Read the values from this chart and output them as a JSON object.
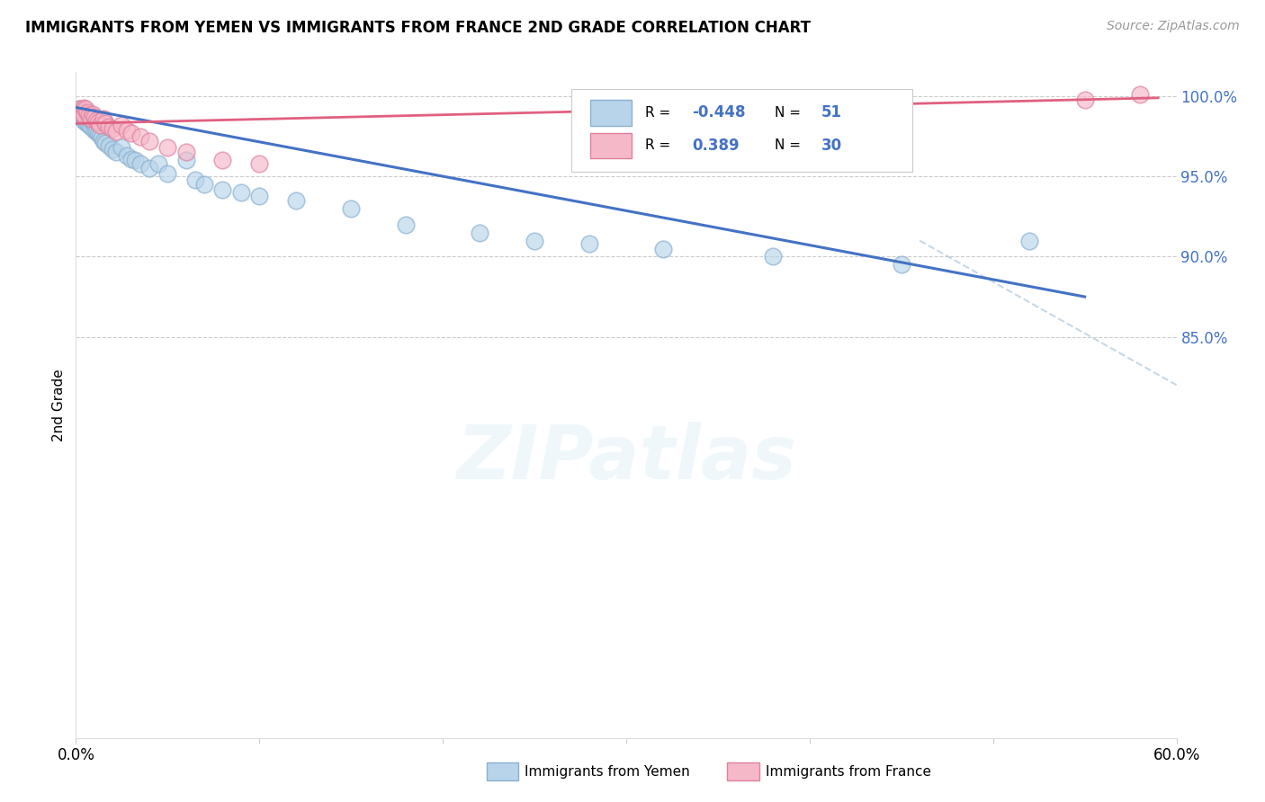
{
  "title": "IMMIGRANTS FROM YEMEN VS IMMIGRANTS FROM FRANCE 2ND GRADE CORRELATION CHART",
  "source": "Source: ZipAtlas.com",
  "ylabel": "2nd Grade",
  "ytick_labels": [
    "100.0%",
    "95.0%",
    "90.0%",
    "85.0%"
  ],
  "ytick_vals": [
    1.0,
    0.95,
    0.9,
    0.85
  ],
  "xtick_labels": [
    "0.0%",
    "",
    "",
    "",
    "",
    "",
    "60.0%"
  ],
  "xtick_vals": [
    0.0,
    0.1,
    0.2,
    0.3,
    0.4,
    0.5,
    0.6
  ],
  "xlim": [
    0.0,
    0.6
  ],
  "ylim": [
    0.6,
    1.015
  ],
  "watermark": "ZIPatlas",
  "blue_R": "-0.448",
  "blue_N": "51",
  "pink_R": "0.389",
  "pink_N": "30",
  "legend_label_blue": "Immigrants from Yemen",
  "legend_label_pink": "Immigrants from France",
  "blue_scatter_x": [
    0.001,
    0.002,
    0.002,
    0.003,
    0.003,
    0.004,
    0.004,
    0.005,
    0.005,
    0.006,
    0.006,
    0.007,
    0.007,
    0.008,
    0.008,
    0.009,
    0.01,
    0.01,
    0.011,
    0.012,
    0.013,
    0.014,
    0.015,
    0.016,
    0.018,
    0.02,
    0.022,
    0.025,
    0.028,
    0.03,
    0.032,
    0.035,
    0.04,
    0.045,
    0.05,
    0.06,
    0.065,
    0.07,
    0.08,
    0.09,
    0.1,
    0.12,
    0.15,
    0.18,
    0.22,
    0.25,
    0.28,
    0.32,
    0.38,
    0.45,
    0.52
  ],
  "blue_scatter_y": [
    0.99,
    0.992,
    0.988,
    0.991,
    0.987,
    0.99,
    0.985,
    0.989,
    0.984,
    0.987,
    0.983,
    0.986,
    0.982,
    0.985,
    0.981,
    0.984,
    0.983,
    0.979,
    0.978,
    0.977,
    0.976,
    0.974,
    0.972,
    0.971,
    0.969,
    0.967,
    0.965,
    0.968,
    0.963,
    0.961,
    0.96,
    0.958,
    0.955,
    0.958,
    0.952,
    0.96,
    0.948,
    0.945,
    0.942,
    0.94,
    0.938,
    0.935,
    0.93,
    0.92,
    0.915,
    0.91,
    0.908,
    0.905,
    0.9,
    0.895,
    0.91
  ],
  "pink_scatter_x": [
    0.001,
    0.002,
    0.003,
    0.004,
    0.004,
    0.005,
    0.006,
    0.007,
    0.008,
    0.009,
    0.01,
    0.011,
    0.012,
    0.013,
    0.015,
    0.016,
    0.018,
    0.02,
    0.022,
    0.025,
    0.028,
    0.03,
    0.035,
    0.04,
    0.05,
    0.06,
    0.08,
    0.1,
    0.55,
    0.58
  ],
  "pink_scatter_y": [
    0.99,
    0.992,
    0.99,
    0.993,
    0.988,
    0.992,
    0.99,
    0.988,
    0.986,
    0.989,
    0.987,
    0.985,
    0.984,
    0.982,
    0.986,
    0.983,
    0.981,
    0.98,
    0.978,
    0.982,
    0.979,
    0.977,
    0.975,
    0.972,
    0.968,
    0.965,
    0.96,
    0.958,
    0.998,
    1.001
  ],
  "blue_line_x": [
    0.0,
    0.55
  ],
  "blue_line_y": [
    0.993,
    0.875
  ],
  "pink_line_x": [
    0.0,
    0.59
  ],
  "pink_line_y": [
    0.983,
    0.999
  ],
  "dashed_line_x": [
    0.46,
    0.6
  ],
  "dashed_line_y": [
    0.91,
    0.82
  ]
}
